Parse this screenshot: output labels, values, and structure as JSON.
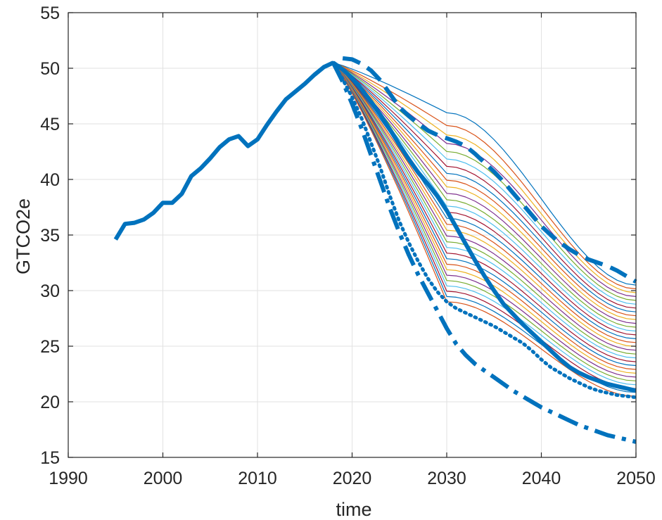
{
  "chart_data": {
    "type": "line",
    "title": "",
    "xlabel": "time",
    "ylabel": "GTCO2e",
    "xlim": [
      1990,
      2050
    ],
    "ylim": [
      15,
      55
    ],
    "xticks": [
      1990,
      2000,
      2010,
      2020,
      2030,
      2040,
      2050
    ],
    "yticks": [
      15,
      20,
      25,
      30,
      35,
      40,
      45,
      50,
      55
    ],
    "grid": true,
    "legend": "none",
    "colors": {
      "main": "#0072BD",
      "fan": [
        "#0072BD",
        "#D95319",
        "#EDB120",
        "#7E2F8E",
        "#77AC30",
        "#4DBEEE",
        "#A2142F"
      ]
    },
    "series": [
      {
        "role": "historical",
        "style": "solid-thick",
        "x": [
          1995,
          1996,
          1997,
          1998,
          1999,
          2000,
          2001,
          2002,
          2003,
          2004,
          2005,
          2006,
          2007,
          2008,
          2009,
          2010,
          2011,
          2012,
          2013,
          2014,
          2015,
          2016,
          2017,
          2018
        ],
        "y": [
          34.6,
          36.0,
          36.1,
          36.4,
          37.0,
          37.9,
          37.9,
          38.7,
          40.3,
          41.0,
          41.9,
          42.9,
          43.6,
          43.9,
          43.0,
          43.6,
          44.9,
          46.1,
          47.2,
          47.9,
          48.6,
          49.4,
          50.1,
          50.5
        ]
      },
      {
        "role": "upper-bound",
        "style": "dashed-thick",
        "x": [
          2019,
          2020,
          2021,
          2022,
          2023,
          2024,
          2025,
          2026,
          2027,
          2028,
          2029,
          2030,
          2031,
          2032,
          2033,
          2034,
          2035,
          2036,
          2037,
          2038,
          2039,
          2040,
          2041,
          2042,
          2043,
          2044,
          2045,
          2046,
          2047,
          2048,
          2049,
          2050
        ],
        "y": [
          50.9,
          50.8,
          50.4,
          49.8,
          48.9,
          47.7,
          46.5,
          45.7,
          45.0,
          44.4,
          44.0,
          43.7,
          43.4,
          43.0,
          42.3,
          41.5,
          40.7,
          39.8,
          38.8,
          37.8,
          36.8,
          35.8,
          35.0,
          34.3,
          33.7,
          33.2,
          32.8,
          32.5,
          32.2,
          31.8,
          31.3,
          30.8
        ]
      },
      {
        "role": "central",
        "style": "solid-thick",
        "x": [
          2018,
          2019,
          2020,
          2021,
          2022,
          2023,
          2024,
          2025,
          2026,
          2027,
          2028,
          2029,
          2030,
          2031,
          2032,
          2033,
          2034,
          2035,
          2036,
          2037,
          2038,
          2039,
          2040,
          2041,
          2042,
          2043,
          2044,
          2045,
          2046,
          2047,
          2048,
          2049,
          2050
        ],
        "y": [
          50.5,
          49.9,
          49.1,
          48.1,
          47.0,
          45.8,
          44.5,
          43.1,
          41.8,
          40.6,
          39.6,
          38.5,
          37.2,
          35.7,
          34.2,
          32.7,
          31.3,
          30.0,
          28.8,
          27.9,
          27.0,
          26.2,
          25.4,
          24.6,
          23.8,
          23.1,
          22.6,
          22.2,
          21.9,
          21.6,
          21.4,
          21.2,
          21.0
        ]
      },
      {
        "role": "lower-envelope",
        "style": "dotted-thick",
        "x": [
          2018,
          2019,
          2020,
          2021,
          2022,
          2023,
          2024,
          2025,
          2026,
          2027,
          2028,
          2029,
          2030,
          2031,
          2032,
          2033,
          2034,
          2035,
          2036,
          2037,
          2038,
          2039,
          2040,
          2041,
          2042,
          2043,
          2044,
          2045,
          2046,
          2047,
          2048,
          2049,
          2050
        ],
        "y": [
          50.5,
          49.0,
          47.4,
          45.5,
          43.3,
          41.0,
          38.5,
          36.2,
          34.3,
          32.6,
          31.1,
          29.9,
          29.0,
          28.4,
          28.0,
          27.6,
          27.2,
          26.8,
          26.3,
          25.8,
          25.3,
          24.6,
          23.8,
          23.1,
          22.6,
          22.1,
          21.7,
          21.3,
          21.0,
          20.8,
          20.6,
          20.5,
          20.4
        ]
      },
      {
        "role": "lower-bound",
        "style": "dashdot-thick",
        "x": [
          2018,
          2019,
          2020,
          2021,
          2022,
          2023,
          2024,
          2025,
          2026,
          2027,
          2028,
          2029,
          2030,
          2031,
          2032,
          2033,
          2034,
          2035,
          2036,
          2037,
          2038,
          2039,
          2040,
          2041,
          2042,
          2043,
          2044,
          2045,
          2046,
          2047,
          2048,
          2049,
          2050
        ],
        "y": [
          50.5,
          48.8,
          46.8,
          44.6,
          42.2,
          39.8,
          37.4,
          35.2,
          33.2,
          31.4,
          29.8,
          28.2,
          26.6,
          25.2,
          24.2,
          23.4,
          22.8,
          22.2,
          21.6,
          21.0,
          20.5,
          20.0,
          19.5,
          19.1,
          18.7,
          18.3,
          17.9,
          17.6,
          17.3,
          17.0,
          16.8,
          16.6,
          16.4
        ]
      }
    ],
    "fan": {
      "x_start": 2018,
      "y_start": 50.5,
      "x_end": 2050,
      "count": 30,
      "y_end_range": [
        20.5,
        30.5
      ],
      "y_2030_range": [
        29.0,
        46.0
      ]
    }
  }
}
